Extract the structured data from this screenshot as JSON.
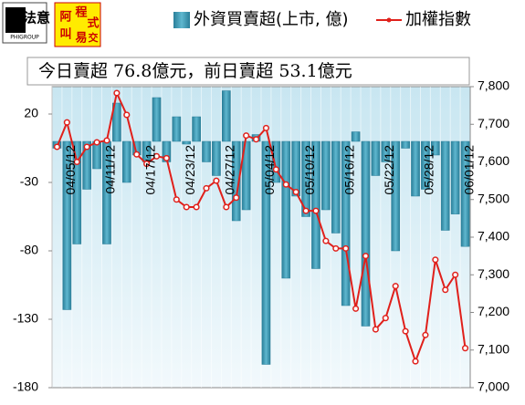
{
  "header": {
    "logo1": "法意",
    "logo1_sub": "PHIGROUP",
    "logo2": [
      "阿",
      "程",
      "式",
      "叫",
      "易",
      "交"
    ]
  },
  "chart_data": {
    "type": "bar-line",
    "annotation": "今日賣超 76.8億元，前日賣超 53.1億元",
    "categories": [
      null,
      "04/05/12",
      null,
      null,
      null,
      "04/11/12",
      null,
      null,
      null,
      "04/17/12",
      null,
      null,
      null,
      "04/23/12",
      null,
      null,
      null,
      "04/27/12",
      null,
      null,
      null,
      "05/04/12",
      null,
      null,
      null,
      "05/10/12",
      null,
      null,
      null,
      "05/16/12",
      null,
      null,
      null,
      "05/22/12",
      null,
      null,
      null,
      "05/28/12",
      null,
      null,
      null,
      "06/01/12"
    ],
    "series": [
      {
        "name": "外資買賣超(上市, 億)",
        "type": "bar",
        "color": "#3f9db8",
        "values": [
          -5,
          -123,
          -75,
          -35,
          -20,
          -75,
          28,
          -30,
          -10,
          -15,
          32,
          -15,
          18,
          -2,
          18,
          -15,
          -25,
          37,
          -58,
          -50,
          5,
          -163,
          -30,
          -100,
          -40,
          -55,
          -93,
          -50,
          -67,
          -120,
          7,
          -135,
          -25,
          -15,
          -80,
          -5,
          -40,
          -35,
          -10,
          -65,
          -53.1,
          -76.8
        ]
      },
      {
        "name": "加權指數",
        "type": "line",
        "axis": "y2",
        "color": "#e0201b",
        "values": [
          7640,
          7705,
          7600,
          7640,
          7652,
          7657,
          7783,
          7725,
          7620,
          7595,
          7615,
          7610,
          7500,
          7480,
          7480,
          7530,
          7550,
          7480,
          7505,
          7670,
          7660,
          7690,
          7580,
          7540,
          7520,
          7470,
          7470,
          7390,
          7370,
          7370,
          7210,
          7350,
          7155,
          7185,
          7270,
          7150,
          7070,
          7140,
          7340,
          7260,
          7300,
          7105
        ]
      }
    ],
    "ylim": [
      -180,
      40
    ],
    "yticks": [
      -180,
      -130,
      -80,
      -30,
      20
    ],
    "y2lim": [
      7000,
      7800
    ],
    "y2ticks": [
      {
        "value": 7000,
        "label": "7,000"
      },
      {
        "value": 7100,
        "label": "7,100"
      },
      {
        "value": 7200,
        "label": "7,200"
      },
      {
        "value": 7300,
        "label": "7,300"
      },
      {
        "value": 7400,
        "label": "7,400"
      },
      {
        "value": 7500,
        "label": "7,500"
      },
      {
        "value": 7600,
        "label": "7,600"
      },
      {
        "value": 7700,
        "label": "7,700"
      },
      {
        "value": 7800,
        "label": "7,800"
      }
    ]
  }
}
